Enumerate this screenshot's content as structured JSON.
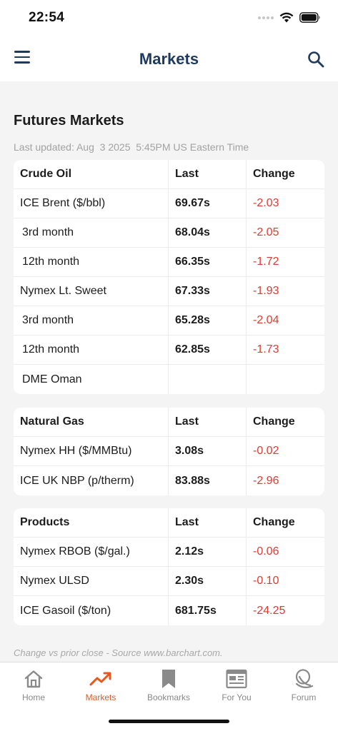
{
  "status_bar": {
    "time": "22:54"
  },
  "header": {
    "title": "Markets",
    "menu_icon": "hamburger-icon",
    "search_icon": "search-icon"
  },
  "page": {
    "title": "Futures Markets",
    "last_updated": "Last updated: Aug  3 2025  5:45PM US Eastern Time"
  },
  "crude_oil": {
    "headers": [
      "Crude Oil",
      "Last",
      "Change"
    ],
    "rows": [
      {
        "name": "ICE Brent ($/bbl)",
        "last": "69.67s",
        "change": "-2.03",
        "indent": false
      },
      {
        "name": "3rd month",
        "last": "68.04s",
        "change": "-2.05",
        "indent": true
      },
      {
        "name": "12th month",
        "last": "66.35s",
        "change": "-1.72",
        "indent": true
      },
      {
        "name": "Nymex Lt. Sweet",
        "last": "67.33s",
        "change": "-1.93",
        "indent": false
      },
      {
        "name": "3rd month",
        "last": "65.28s",
        "change": "-2.04",
        "indent": true
      },
      {
        "name": "12th month",
        "last": "62.85s",
        "change": "-1.73",
        "indent": true
      },
      {
        "name": "DME Oman",
        "last": "",
        "change": "",
        "indent": true
      }
    ]
  },
  "natural_gas": {
    "headers": [
      "Natural Gas",
      "Last",
      "Change"
    ],
    "rows": [
      {
        "name": "Nymex HH ($/MMBtu)",
        "last": "3.08s",
        "change": "-0.02",
        "indent": false
      },
      {
        "name": "ICE UK NBP (p/therm)",
        "last": "83.88s",
        "change": "-2.96",
        "indent": false
      }
    ]
  },
  "products": {
    "headers": [
      "Products",
      "Last",
      "Change"
    ],
    "rows": [
      {
        "name": "Nymex RBOB ($/gal.)",
        "last": "2.12s",
        "change": "-0.06",
        "indent": false
      },
      {
        "name": "Nymex ULSD",
        "last": "2.30s",
        "change": "-0.10",
        "indent": false
      },
      {
        "name": "ICE Gasoil ($/ton)",
        "last": "681.75s",
        "change": "-24.25",
        "indent": false
      }
    ]
  },
  "footnote": "Change vs prior close - Source www.barchart.com.",
  "colors": {
    "accent": "#e8571b",
    "brand": "#1f3a5f",
    "negative": "#e03a2f"
  },
  "tabs": [
    {
      "label": "Home",
      "icon": "home-icon",
      "active": false
    },
    {
      "label": "Markets",
      "icon": "trending-up-icon",
      "active": true
    },
    {
      "label": "Bookmarks",
      "icon": "bookmark-icon",
      "active": false
    },
    {
      "label": "For You",
      "icon": "newspaper-icon",
      "active": false
    },
    {
      "label": "Forum",
      "icon": "forum-icon",
      "active": false
    }
  ]
}
